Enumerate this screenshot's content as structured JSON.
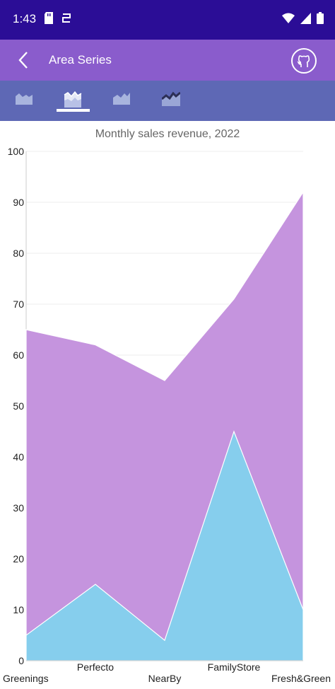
{
  "status_bar": {
    "time": "1:43",
    "icons": [
      "sd-card-icon",
      "sync-icon",
      "wifi-icon",
      "signal-icon",
      "battery-icon"
    ]
  },
  "app_bar": {
    "title": "Area Series",
    "back_icon": "back-arrow-icon",
    "github_icon": "github-icon"
  },
  "toolbar": {
    "buttons": [
      "area-chart-icon",
      "area-chart-selected-icon",
      "area-chart-icon",
      "line-area-chart-icon"
    ],
    "selected_index": 1
  },
  "colors": {
    "status_bar": "#2b0d96",
    "app_bar": "#8a5ccc",
    "toolbar": "#5e68b5",
    "series_outer": "#c594de",
    "series_inner": "#86ceed"
  },
  "chart_data": {
    "type": "area",
    "title": "Monthly sales revenue, 2022",
    "categories": [
      "Greenings",
      "Perfecto",
      "NearBy",
      "FamilyStore",
      "Fresh&Green"
    ],
    "series": [
      {
        "values": [
          65,
          62,
          55,
          71,
          92
        ]
      },
      {
        "values": [
          5,
          15,
          4,
          45,
          10
        ]
      }
    ],
    "ylim": [
      0,
      100
    ],
    "yticks": [
      0,
      10,
      20,
      30,
      40,
      50,
      60,
      70,
      80,
      90,
      100
    ],
    "grid": true,
    "legend": "none"
  }
}
